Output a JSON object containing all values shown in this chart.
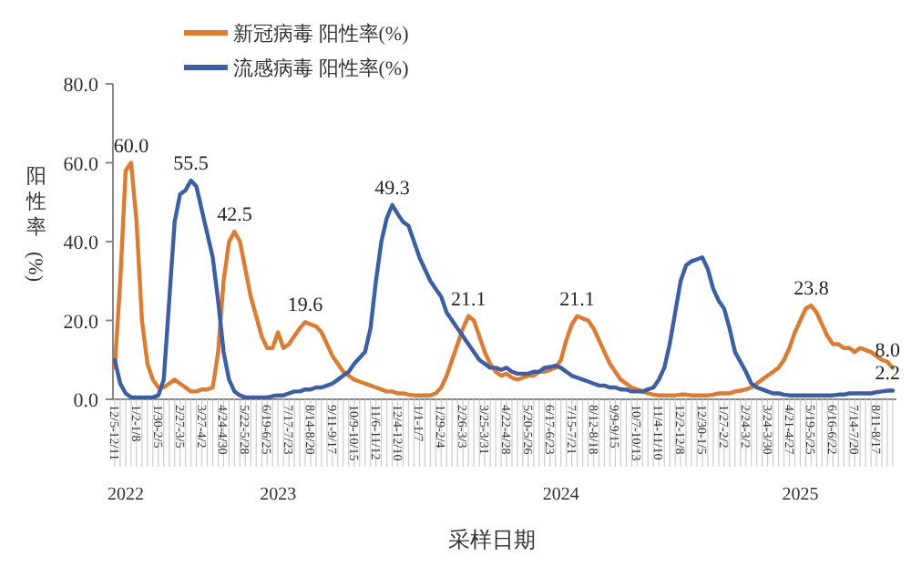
{
  "chart_data": {
    "type": "line",
    "xlabel": "采样日期",
    "ylabel": "阳性率(%)",
    "legend": "top",
    "ylim": [
      0,
      80
    ],
    "yticks": [
      {
        "value": 0,
        "label": "0.0"
      },
      {
        "value": 20,
        "label": "20.0"
      },
      {
        "value": 40,
        "label": "40.0"
      },
      {
        "value": 60,
        "label": "60.0"
      },
      {
        "value": 80,
        "label": "80.0"
      }
    ],
    "categories": [
      "12/5-12/11",
      null,
      null,
      null,
      "1/2-1/8",
      null,
      null,
      null,
      "1/30-2/5",
      null,
      null,
      null,
      "2/27-3/5",
      null,
      null,
      null,
      "3/27-4/2",
      null,
      null,
      null,
      "4/24-4/30",
      null,
      null,
      null,
      "5/22-5/28",
      null,
      null,
      null,
      "6/19-6/25",
      null,
      null,
      null,
      "7/17-7/23",
      null,
      null,
      null,
      "8/14-8/20",
      null,
      null,
      null,
      "9/11-9/17",
      null,
      null,
      null,
      "10/9-10/15",
      null,
      null,
      null,
      "11/6-11/12",
      null,
      null,
      null,
      "12/4-12/10",
      null,
      null,
      null,
      "1/1-1/7",
      null,
      null,
      null,
      "1/29-2/4",
      null,
      null,
      null,
      "2/26-3/3",
      null,
      null,
      null,
      "3/25-3/31",
      null,
      null,
      null,
      "4/22-4/28",
      null,
      null,
      null,
      "5/20-5/26",
      null,
      null,
      null,
      "6/17-6/23",
      null,
      null,
      null,
      "7/15-7/21",
      null,
      null,
      null,
      "8/12-8/18",
      null,
      null,
      null,
      "9/9-9/15",
      null,
      null,
      null,
      "10/7-10/13",
      null,
      null,
      null,
      "11/4-11/10",
      null,
      null,
      null,
      "12/2-12/8",
      null,
      null,
      null,
      "12/30-1/5",
      null,
      null,
      null,
      "1/27-2/2",
      null,
      null,
      null,
      "2/24-3/2",
      null,
      null,
      null,
      "3/24-3/30",
      null,
      null,
      null,
      "4/21-4/27",
      null,
      null,
      null,
      "5/19-5/25",
      null,
      null,
      null,
      "6/16-6/22",
      null,
      null,
      null,
      "7/14-7/20",
      null,
      null,
      null,
      "8/11-8/17",
      null,
      null,
      null
    ],
    "series": [
      {
        "name": "新冠病毒 阳性率(%)",
        "type": "line",
        "color": "#e07b2e",
        "values": [
          8,
          30,
          58,
          60,
          45,
          20,
          9,
          5,
          3,
          3,
          4,
          5,
          4,
          3,
          2,
          2,
          2.5,
          2.5,
          3,
          12,
          30,
          40,
          42.5,
          40,
          33,
          26,
          21,
          16,
          13,
          13,
          17,
          13,
          14,
          16,
          18,
          19.6,
          19,
          18.5,
          17,
          14,
          11,
          9,
          7,
          6,
          5,
          4.5,
          4,
          3.5,
          3,
          2.5,
          2,
          2,
          1.5,
          1.5,
          1.2,
          1,
          1,
          1,
          1,
          1.5,
          3,
          6,
          10,
          14,
          18,
          21.1,
          20,
          16,
          12,
          9,
          7,
          6,
          6.5,
          5.5,
          5,
          5.5,
          6,
          6,
          7,
          7,
          7.5,
          8,
          10,
          15,
          19,
          21.1,
          20.5,
          20,
          18,
          15,
          12,
          9,
          7,
          5,
          4,
          3,
          2.5,
          2,
          1.5,
          1.2,
          1,
          1,
          1,
          1,
          1.2,
          1.2,
          1,
          1,
          1,
          1,
          1.2,
          1.5,
          1.5,
          1.5,
          2,
          2.2,
          2.5,
          3,
          4,
          5,
          6,
          7,
          8,
          10,
          13,
          17,
          20,
          23,
          23.8,
          22,
          19,
          16,
          14,
          14,
          13,
          13,
          12,
          13,
          12.5,
          12,
          11,
          10,
          9.5,
          8.0
        ],
        "value_labels": [
          null,
          null,
          null,
          "60.0",
          null,
          null,
          null,
          null,
          null,
          null,
          null,
          null,
          null,
          null,
          null,
          null,
          null,
          null,
          null,
          null,
          null,
          null,
          "42.5",
          null,
          null,
          null,
          null,
          null,
          null,
          null,
          null,
          null,
          null,
          null,
          null,
          "19.6",
          null,
          null,
          null,
          null,
          null,
          null,
          null,
          null,
          null,
          null,
          null,
          null,
          null,
          null,
          null,
          null,
          null,
          null,
          null,
          null,
          null,
          null,
          null,
          null,
          null,
          null,
          null,
          null,
          null,
          "21.1",
          null,
          null,
          null,
          null,
          null,
          null,
          null,
          null,
          null,
          null,
          null,
          null,
          null,
          null,
          null,
          null,
          null,
          null,
          null,
          "21.1",
          null,
          null,
          null,
          null,
          null,
          null,
          null,
          null,
          null,
          null,
          null,
          null,
          null,
          null,
          null,
          null,
          null,
          null,
          null,
          null,
          null,
          null,
          null,
          null,
          null,
          null,
          null,
          null,
          null,
          null,
          null,
          null,
          null,
          null,
          null,
          null,
          null,
          null,
          null,
          null,
          null,
          null,
          "23.8",
          null,
          null,
          null,
          null,
          null,
          null,
          null,
          null,
          null,
          null,
          null,
          null,
          null,
          null,
          "8.0"
        ]
      },
      {
        "name": "流感病毒 阳性率(%)",
        "type": "line",
        "color": "#3a5fa8",
        "values": [
          10,
          4,
          1.5,
          0.5,
          0.5,
          0.5,
          0.5,
          0.5,
          1,
          5,
          25,
          45,
          52,
          53,
          55.5,
          54,
          48,
          42,
          36,
          25,
          12,
          5,
          2,
          1,
          0.5,
          0.5,
          0.5,
          0.5,
          0.5,
          0.8,
          1,
          1,
          1.5,
          2,
          2,
          2.5,
          2.5,
          3,
          3,
          3.5,
          4,
          5,
          6,
          7,
          9,
          10.5,
          12,
          18,
          30,
          40,
          46,
          49.3,
          47,
          45,
          44,
          40,
          36,
          33,
          30,
          28,
          26,
          22,
          20,
          18,
          16,
          14,
          12,
          10,
          9,
          8,
          8,
          7.5,
          8,
          7,
          6.5,
          6.5,
          6.5,
          7,
          7,
          8,
          8.2,
          8.5,
          8,
          7,
          6,
          5.5,
          5,
          4.5,
          4,
          3.5,
          3.5,
          3,
          3,
          2.5,
          2.5,
          2,
          2,
          2,
          2.5,
          3,
          5,
          8,
          14,
          22,
          30,
          34,
          35,
          35.5,
          36,
          33,
          28,
          25,
          23,
          18,
          12,
          9.5,
          7,
          4,
          3,
          2.5,
          2,
          1.5,
          1.5,
          1.2,
          1,
          1,
          1,
          1,
          1,
          1,
          1,
          1,
          1,
          1.2,
          1.2,
          1.5,
          1.5,
          1.5,
          1.5,
          1.5,
          1.8,
          2,
          2.2,
          2.2
        ],
        "value_labels": [
          null,
          null,
          null,
          null,
          null,
          null,
          null,
          null,
          null,
          null,
          null,
          null,
          null,
          null,
          "55.5",
          null,
          null,
          null,
          null,
          null,
          null,
          null,
          null,
          null,
          null,
          null,
          null,
          null,
          null,
          null,
          null,
          null,
          null,
          null,
          null,
          null,
          null,
          null,
          null,
          null,
          null,
          null,
          null,
          null,
          null,
          null,
          null,
          null,
          null,
          null,
          null,
          "49.3",
          null,
          null,
          null,
          null,
          null,
          null,
          null,
          null,
          null,
          null,
          null,
          null,
          null,
          null,
          null,
          null,
          null,
          null,
          null,
          null,
          null,
          null,
          null,
          null,
          null,
          null,
          null,
          null,
          null,
          null,
          null,
          null,
          null,
          null,
          null,
          null,
          null,
          null,
          null,
          null,
          null,
          null,
          null,
          null,
          null,
          null,
          null,
          null,
          null,
          null,
          null,
          null,
          null,
          null,
          null,
          null,
          null,
          null,
          null,
          null,
          null,
          null,
          null,
          null,
          null,
          null,
          null,
          null,
          null,
          null,
          null,
          null,
          null,
          null,
          null,
          null,
          null,
          null,
          null,
          null,
          null,
          null,
          null,
          null,
          null,
          null,
          null,
          null,
          null,
          null,
          null,
          "2.2"
        ]
      }
    ],
    "annotations": [
      {
        "text": "2022",
        "x": "12/5-12/11"
      },
      {
        "text": "2023",
        "x": "6/19-6/25"
      },
      {
        "text": "2024",
        "x": "6/17-6/23"
      },
      {
        "text": "2025",
        "x": "4/21-4/27"
      }
    ]
  }
}
